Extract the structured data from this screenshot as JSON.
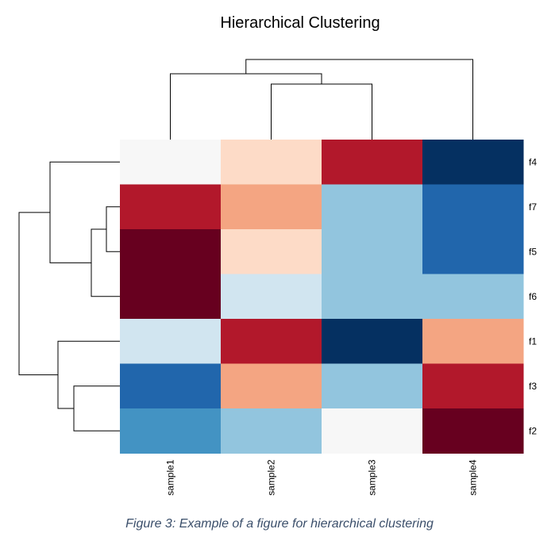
{
  "chart_data": {
    "type": "heatmap",
    "title": "Hierarchical Clustering",
    "columns": [
      "sample1",
      "sample2",
      "sample3",
      "sample4"
    ],
    "rows": [
      "f4",
      "f7",
      "f5",
      "f6",
      "f1",
      "f3",
      "f2"
    ],
    "colors": [
      [
        "#f7f7f7",
        "#fddbc7",
        "#b2182b",
        "#053061"
      ],
      [
        "#b2182b",
        "#f4a582",
        "#92c5de",
        "#2166ac"
      ],
      [
        "#67001f",
        "#fddbc7",
        "#92c5de",
        "#2166ac"
      ],
      [
        "#67001f",
        "#d1e5f0",
        "#92c5de",
        "#92c5de"
      ],
      [
        "#d1e5f0",
        "#b2182b",
        "#053061",
        "#f4a582"
      ],
      [
        "#2166ac",
        "#f4a582",
        "#92c5de",
        "#b2182b"
      ],
      [
        "#4393c3",
        "#92c5de",
        "#f7f7f7",
        "#67001f"
      ]
    ],
    "colormap": "diverging red-white-blue",
    "column_dendrogram": "((sample1,(sample2,sample3)),sample4)",
    "row_dendrogram": "((f4,((f7,f5),f6)),(f1,(f3,f2)))",
    "legend": "none"
  },
  "caption": "Figure 3: Example of a figure for hierarchical clustering"
}
